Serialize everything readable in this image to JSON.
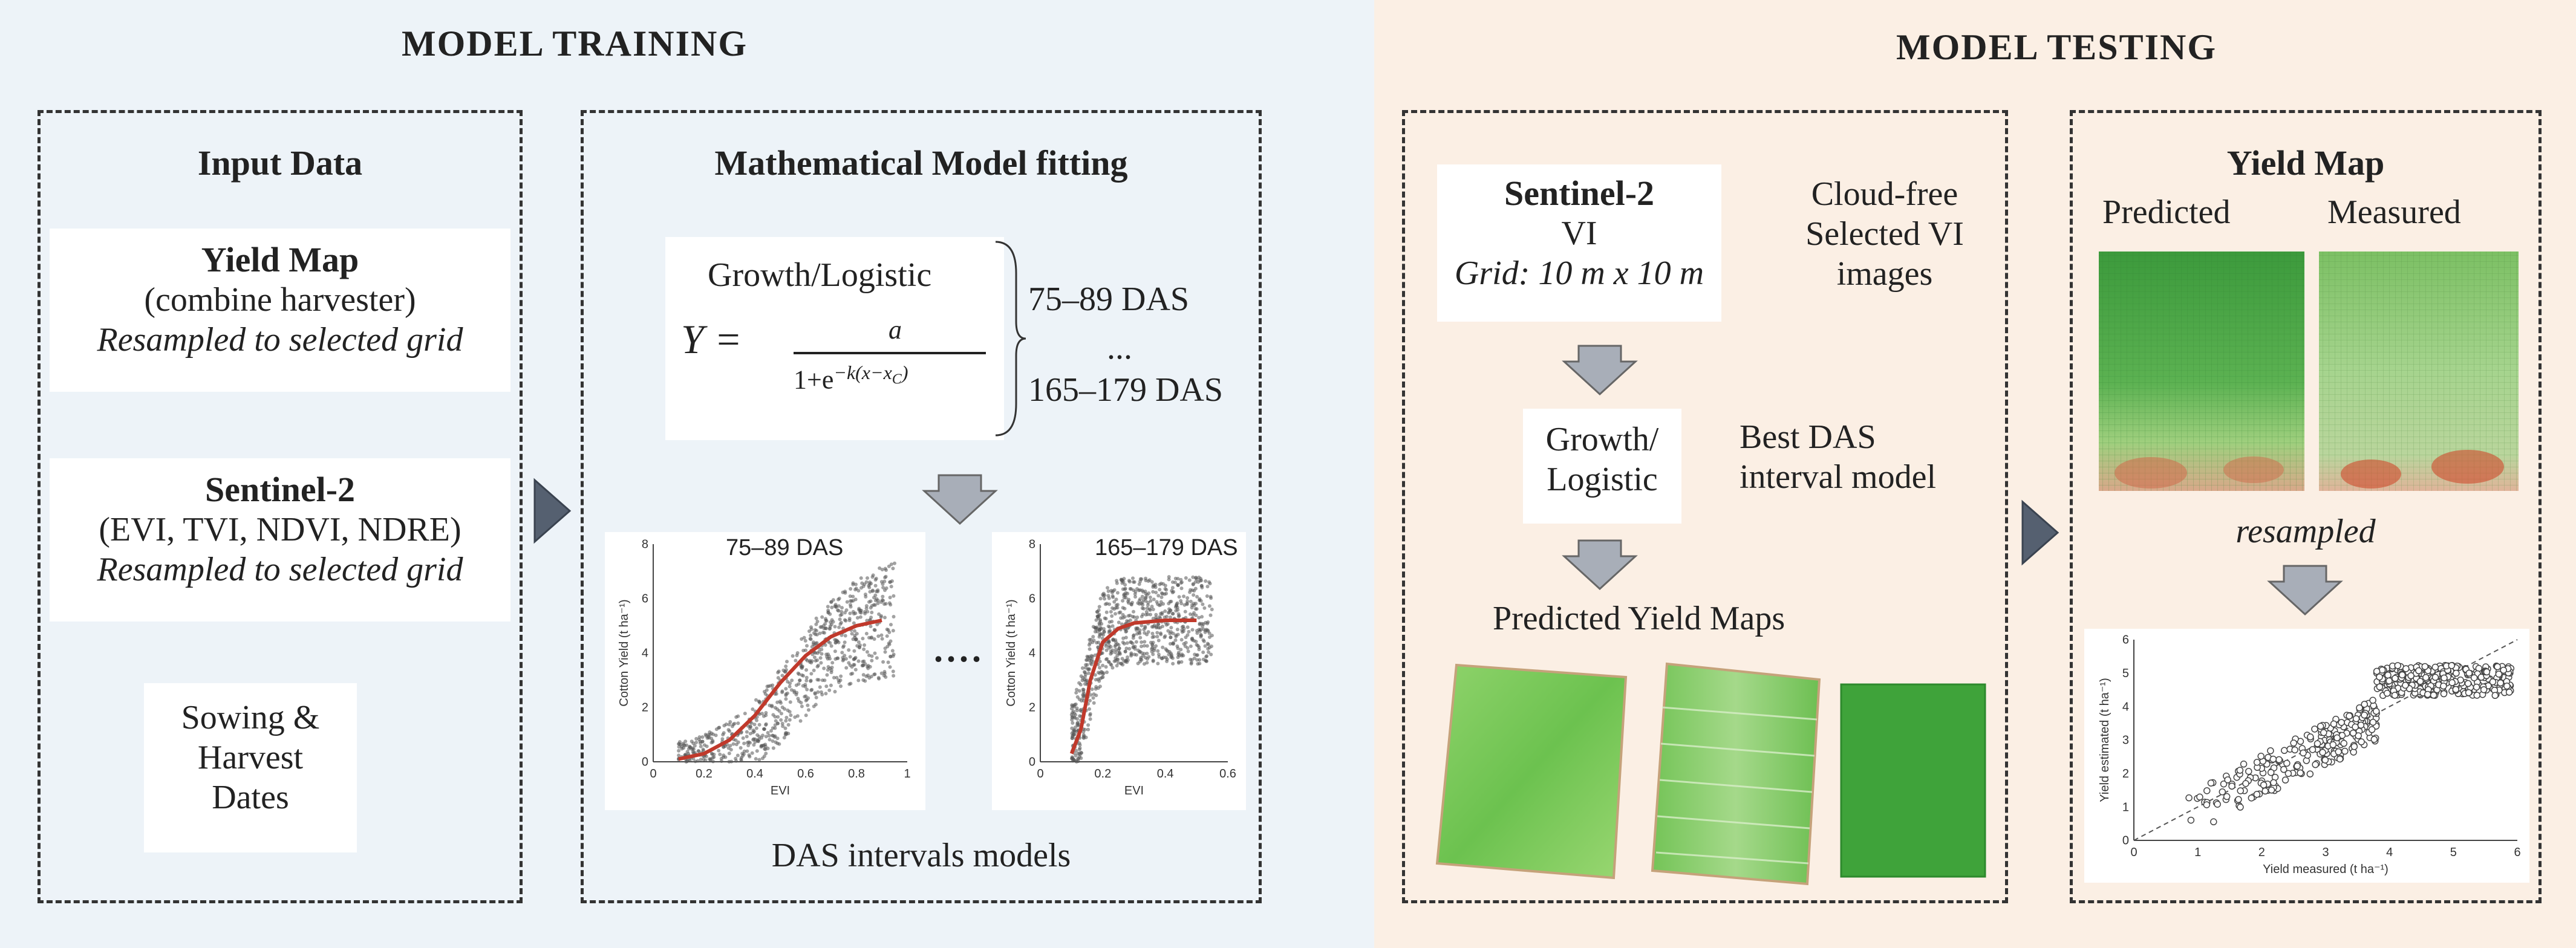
{
  "training": {
    "title": "MODEL TRAINING",
    "input": {
      "heading": "Input Data",
      "yield_map": {
        "title": "Yield Map",
        "line1": "(combine harvester)",
        "line2": "Resampled to selected grid"
      },
      "sentinel": {
        "title": "Sentinel-2",
        "line1": "(EVI, TVI, NDVI, NDRE)",
        "line2": "Resampled to selected grid"
      },
      "dates": {
        "line1": "Sowing &",
        "line2": "Harvest",
        "line3": "Dates"
      }
    },
    "fitting": {
      "heading": "Mathematical Model fitting",
      "model_name": "Growth/Logistic",
      "eq_lhs": "Y =",
      "eq_num": "a",
      "eq_den": "1+e",
      "eq_exp": "−k(x−x",
      "eq_sub": "C",
      "eq_close": ")",
      "interval_first": "75–89 DAS",
      "interval_dots": "...",
      "interval_last": "165–179 DAS",
      "chart_dots": "....",
      "caption": "DAS intervals models"
    }
  },
  "testing": {
    "title": "MODEL TESTING",
    "sentinel": {
      "title": "Sentinel-2",
      "line1": "VI",
      "line2": "Grid: 10 m x 10 m"
    },
    "cloud_note": {
      "line1": "Cloud-free",
      "line2": "Selected VI",
      "line3": "images"
    },
    "growth": {
      "line1": "Growth/",
      "line2": "Logistic"
    },
    "best_note": {
      "line1": "Best DAS",
      "line2": "interval model"
    },
    "predicted_maps_label": "Predicted Yield Maps",
    "yield_map": {
      "heading": "Yield Map",
      "predicted": "Predicted",
      "measured": "Measured",
      "resampled": "resampled"
    }
  },
  "chart_data": [
    {
      "type": "scatter",
      "title": "75–89 DAS",
      "xlabel": "EVI",
      "ylabel": "Cotton Yield (t ha⁻¹)",
      "xlim": [
        0,
        1
      ],
      "ylim": [
        0,
        8
      ],
      "xticks": [
        0,
        0.2,
        0.4,
        0.6,
        0.8,
        1
      ],
      "yticks": [
        0,
        2,
        4,
        6,
        8
      ],
      "xtick_labels": [
        "0",
        "0.2",
        "0.4",
        "0.6",
        "0.8",
        "1"
      ],
      "ytick_labels": [
        "0",
        "2",
        "4",
        "6",
        "8"
      ],
      "series": [
        {
          "name": "logistic fit",
          "x": [
            0.1,
            0.2,
            0.3,
            0.4,
            0.5,
            0.6,
            0.7,
            0.8,
            0.9
          ],
          "y": [
            0.1,
            0.3,
            0.8,
            1.7,
            2.9,
            3.9,
            4.6,
            5.0,
            5.2
          ]
        }
      ]
    },
    {
      "type": "scatter",
      "title": "165–179 DAS",
      "xlabel": "EVI",
      "ylabel": "Cotton Yield (t ha⁻¹)",
      "xlim": [
        0,
        0.6
      ],
      "ylim": [
        0,
        8
      ],
      "xticks": [
        0,
        0.2,
        0.4,
        0.6
      ],
      "yticks": [
        0,
        2,
        4,
        6,
        8
      ],
      "xtick_labels": [
        "0",
        "0.2",
        "0.4",
        "0.6"
      ],
      "ytick_labels": [
        "0",
        "2",
        "4",
        "6",
        "8"
      ],
      "series": [
        {
          "name": "logistic fit",
          "x": [
            0.1,
            0.13,
            0.16,
            0.2,
            0.25,
            0.3,
            0.4,
            0.5
          ],
          "y": [
            0.3,
            1.2,
            3.0,
            4.4,
            4.9,
            5.1,
            5.2,
            5.2
          ]
        }
      ]
    },
    {
      "type": "scatter",
      "title": "",
      "xlabel": "Yield measured (t ha⁻¹)",
      "ylabel": "Yield estimated (t ha⁻¹)",
      "xlim": [
        0,
        6
      ],
      "ylim": [
        0,
        6
      ],
      "xticks": [
        0,
        1,
        2,
        3,
        4,
        5,
        6
      ],
      "yticks": [
        0,
        1,
        2,
        3,
        4,
        5,
        6
      ],
      "xtick_labels": [
        "0",
        "1",
        "2",
        "3",
        "4",
        "5",
        "6"
      ],
      "ytick_labels": [
        "0",
        "1",
        "2",
        "3",
        "4",
        "5",
        "6"
      ],
      "series": [
        {
          "name": "1:1 line",
          "x": [
            0,
            6
          ],
          "y": [
            0,
            6
          ]
        }
      ]
    }
  ]
}
